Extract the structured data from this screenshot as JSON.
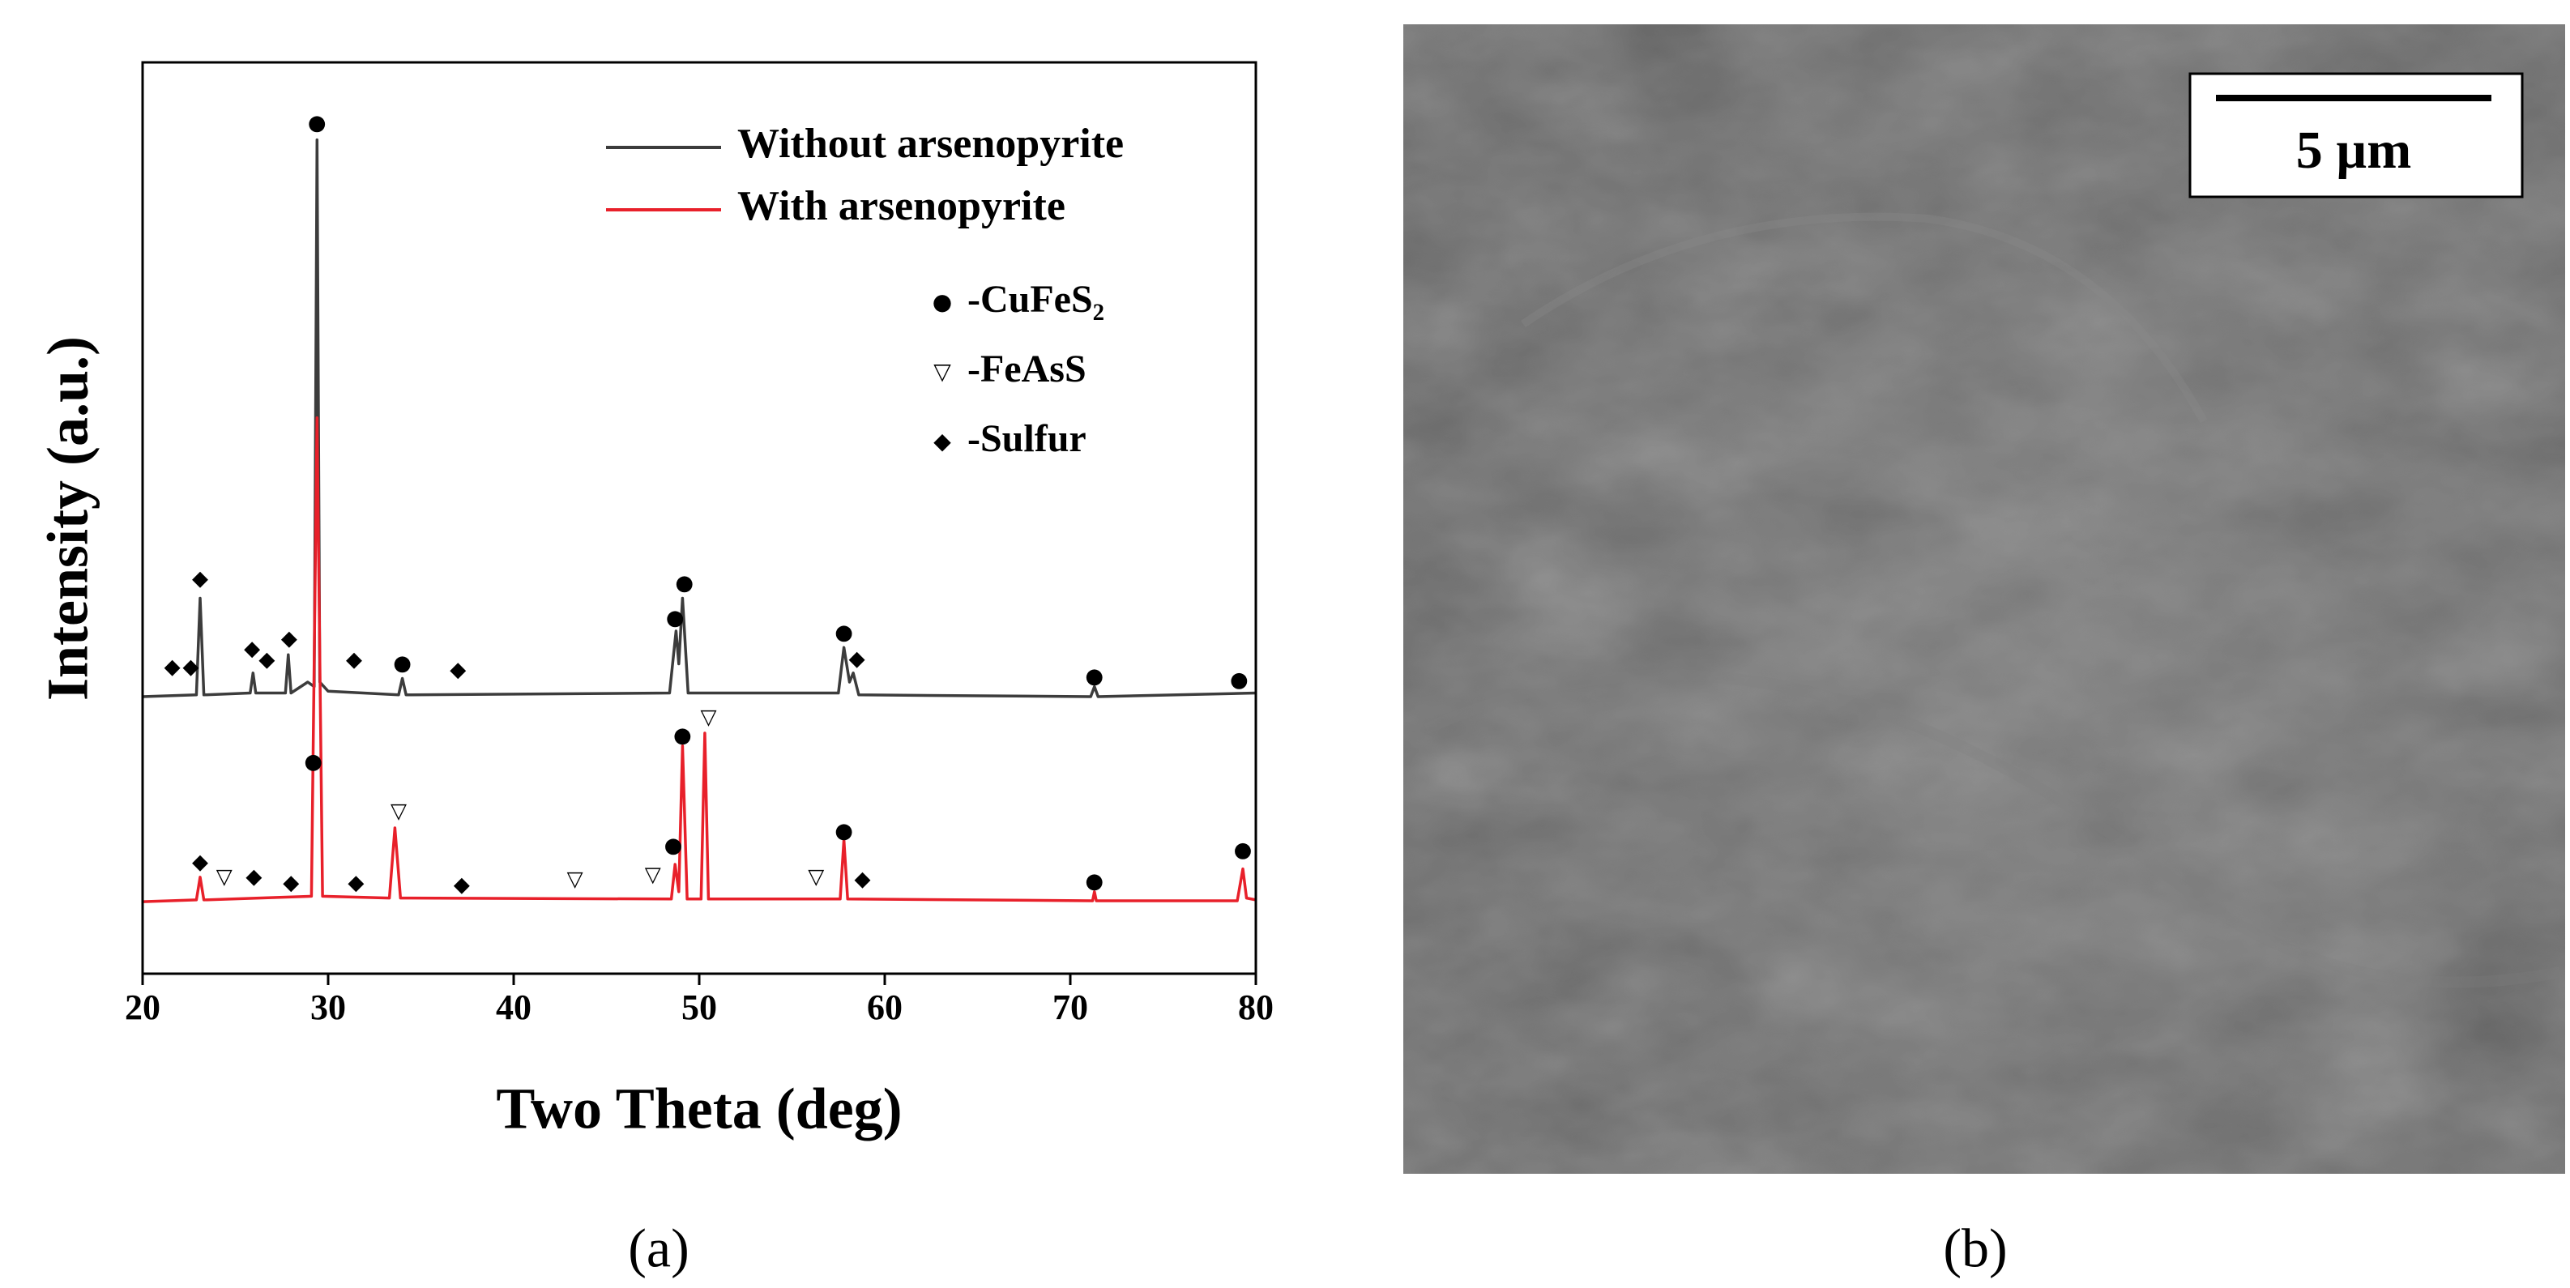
{
  "chart_data": {
    "type": "line",
    "x_label": "Two Theta (deg)",
    "y_label": "Intensity (a.u.)",
    "xlim": [
      20,
      80
    ],
    "xticks": [
      20,
      30,
      40,
      50,
      60,
      70,
      80
    ],
    "ylim": [
      0,
      100
    ],
    "series": [
      {
        "name": "Without arsenopyrite",
        "color": "#3c3c3c",
        "x": [
          20,
          22.9,
          23.1,
          23.3,
          25.8,
          25.95,
          26.1,
          27.7,
          27.85,
          28.0,
          28.9,
          29.25,
          29.4,
          29.55,
          30.0,
          33.8,
          34.0,
          34.2,
          48.4,
          48.75,
          48.9,
          49.1,
          49.4,
          57.5,
          57.8,
          58.1,
          58.3,
          58.6,
          71.1,
          71.3,
          71.5,
          80
        ],
        "values": [
          30.4,
          30.6,
          41.2,
          30.6,
          30.8,
          33.0,
          30.8,
          30.8,
          35.0,
          30.8,
          32.0,
          31.5,
          91.5,
          32.0,
          31.0,
          30.6,
          32.4,
          30.6,
          30.8,
          37.6,
          34.0,
          41.2,
          30.8,
          30.8,
          35.8,
          32.0,
          33.0,
          30.6,
          30.4,
          31.5,
          30.4,
          30.8
        ]
      },
      {
        "name": "With arsenopyrite",
        "color": "#e8202a",
        "x": [
          20,
          22.9,
          23.1,
          23.3,
          29.1,
          29.4,
          29.7,
          33.3,
          33.6,
          33.9,
          48.5,
          48.7,
          48.9,
          49.1,
          49.35,
          50.1,
          50.3,
          50.5,
          57.6,
          57.8,
          58.0,
          71.2,
          71.3,
          71.4,
          79.0,
          79.3,
          79.5,
          80
        ],
        "values": [
          7.9,
          8.1,
          10.6,
          8.1,
          8.5,
          61,
          8.5,
          8.3,
          16,
          8.3,
          8.2,
          12,
          9,
          25,
          8.2,
          8.2,
          26.4,
          8.2,
          8.2,
          14.7,
          8.2,
          8.0,
          9,
          8.0,
          8.0,
          11.5,
          8.3,
          8.1
        ]
      }
    ],
    "peak_markers": [
      {
        "symbol": "●",
        "x": 29.4,
        "y": 93.3
      },
      {
        "symbol": "◆",
        "x": 21.6,
        "y": 33.6
      },
      {
        "symbol": "◆",
        "x": 22.6,
        "y": 33.6
      },
      {
        "symbol": "◆",
        "x": 23.1,
        "y": 43.3
      },
      {
        "symbol": "◆",
        "x": 25.9,
        "y": 35.6
      },
      {
        "symbol": "◆",
        "x": 26.7,
        "y": 34.4
      },
      {
        "symbol": "◆",
        "x": 27.9,
        "y": 36.7
      },
      {
        "symbol": "◆",
        "x": 31.4,
        "y": 34.4
      },
      {
        "symbol": "●",
        "x": 34.0,
        "y": 34.0
      },
      {
        "symbol": "◆",
        "x": 37.0,
        "y": 33.3
      },
      {
        "symbol": "●",
        "x": 48.7,
        "y": 39.0
      },
      {
        "symbol": "●",
        "x": 49.2,
        "y": 42.8
      },
      {
        "symbol": "●",
        "x": 57.8,
        "y": 37.4
      },
      {
        "symbol": "◆",
        "x": 58.5,
        "y": 34.5
      },
      {
        "symbol": "●",
        "x": 71.3,
        "y": 32.6
      },
      {
        "symbol": "●",
        "x": 79.1,
        "y": 32.2
      },
      {
        "symbol": "●",
        "x": 29.2,
        "y": 23.2
      },
      {
        "symbol": "◆",
        "x": 23.1,
        "y": 12.2
      },
      {
        "symbol": "▽",
        "x": 24.4,
        "y": 10.6
      },
      {
        "symbol": "◆",
        "x": 26.0,
        "y": 10.6
      },
      {
        "symbol": "◆",
        "x": 28.0,
        "y": 9.9
      },
      {
        "symbol": "◆",
        "x": 31.5,
        "y": 9.9
      },
      {
        "symbol": "▽",
        "x": 33.8,
        "y": 17.8
      },
      {
        "symbol": "◆",
        "x": 37.2,
        "y": 9.7
      },
      {
        "symbol": "▽",
        "x": 43.3,
        "y": 10.3
      },
      {
        "symbol": "▽",
        "x": 47.5,
        "y": 10.8
      },
      {
        "symbol": "●",
        "x": 48.6,
        "y": 14.0
      },
      {
        "symbol": "●",
        "x": 49.1,
        "y": 26.1
      },
      {
        "symbol": "▽",
        "x": 50.5,
        "y": 28.1
      },
      {
        "symbol": "▽",
        "x": 56.3,
        "y": 10.6
      },
      {
        "symbol": "●",
        "x": 57.8,
        "y": 15.6
      },
      {
        "symbol": "◆",
        "x": 58.8,
        "y": 10.3
      },
      {
        "symbol": "●",
        "x": 71.3,
        "y": 10.1
      },
      {
        "symbol": "●",
        "x": 79.3,
        "y": 13.5
      }
    ],
    "symbol_legend": [
      {
        "symbol": "●",
        "label": "-CuFeS₂"
      },
      {
        "symbol": "▽",
        "label": "-FeAsS"
      },
      {
        "symbol": "◆",
        "label": "-Sulfur"
      }
    ]
  },
  "sem_image": {
    "scale_bar_label": "5 µm"
  },
  "captions": [
    "(a)",
    "(b)"
  ]
}
